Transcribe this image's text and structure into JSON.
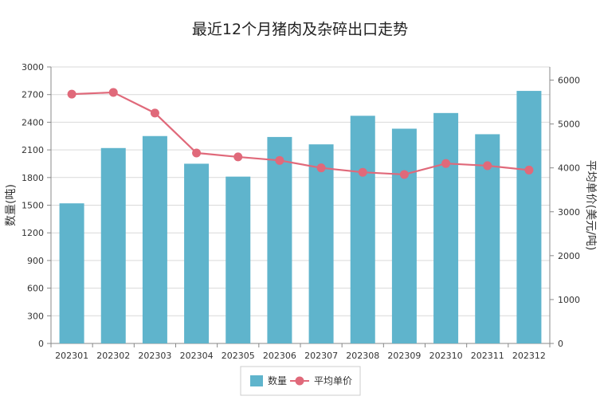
{
  "chart_data": {
    "type": "bar+line",
    "title": "最近12个月猪肉及杂碎出口走势",
    "categories": [
      "202301",
      "202302",
      "202303",
      "202304",
      "202305",
      "202306",
      "202307",
      "202308",
      "202309",
      "202310",
      "202311",
      "202312"
    ],
    "series": [
      {
        "name": "数量",
        "type": "bar",
        "axis": "left",
        "color": "#5fb4cc",
        "values": [
          1520,
          2120,
          2250,
          1950,
          1810,
          2240,
          2160,
          2470,
          2330,
          2500,
          2270,
          2740
        ]
      },
      {
        "name": "平均单价",
        "type": "line",
        "axis": "right",
        "color": "#e0697a",
        "values": [
          5680,
          5720,
          5250,
          4340,
          4250,
          4170,
          4000,
          3900,
          3850,
          4100,
          4050,
          3950
        ]
      }
    ],
    "ylabel_left": "数量(吨)",
    "ylabel_right": "平均单价(美元/吨)",
    "ylim_left": [
      0,
      3000
    ],
    "yticks_left": [
      0,
      300,
      600,
      900,
      1200,
      1500,
      1800,
      2100,
      2400,
      2700,
      3000
    ],
    "ylim_right": [
      0,
      6300
    ],
    "yticks_right": [
      0,
      1000,
      2000,
      3000,
      4000,
      5000,
      6000
    ],
    "grid": true,
    "legend_position": "bottom"
  }
}
